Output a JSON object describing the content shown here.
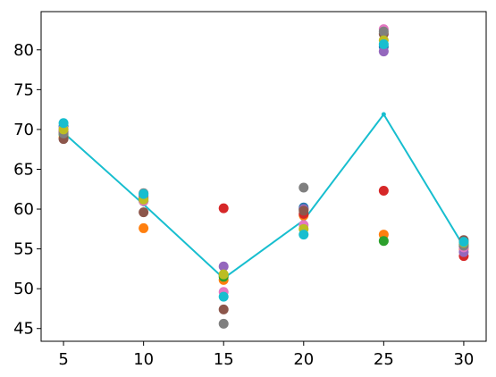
{
  "chart_data": {
    "type": "scatter",
    "title": "",
    "xlabel": "",
    "ylabel": "",
    "xlim": [
      3.6,
      31.4
    ],
    "ylim": [
      43.4,
      84.8
    ],
    "grid": false,
    "legend": "none",
    "x_ticks": [
      5,
      10,
      15,
      20,
      25,
      30
    ],
    "y_ticks": [
      45,
      50,
      55,
      60,
      65,
      70,
      75,
      80
    ],
    "x": [
      5,
      10,
      15,
      20,
      25,
      30
    ],
    "mean_line": {
      "color": "#17becf",
      "values": [
        69.6,
        60.6,
        51.3,
        58.6,
        71.9,
        55.3
      ]
    },
    "series": [
      {
        "color": "#1f77b4",
        "values": [
          70.4,
          61.3,
          51.7,
          60.2,
          80.4,
          55.6
        ]
      },
      {
        "color": "#ff7f0e",
        "values": [
          69.0,
          57.6,
          51.1,
          59.2,
          56.8,
          55.0
        ]
      },
      {
        "color": "#2ca02c",
        "values": [
          69.4,
          61.0,
          51.5,
          60.0,
          56.0,
          55.3
        ]
      },
      {
        "color": "#d62728",
        "values": [
          69.7,
          61.5,
          60.1,
          59.4,
          62.3,
          54.1
        ]
      },
      {
        "color": "#9467bd",
        "values": [
          69.9,
          61.7,
          52.8,
          60.0,
          79.8,
          54.6
        ]
      },
      {
        "color": "#8c564b",
        "values": [
          68.8,
          59.6,
          47.4,
          59.8,
          82.0,
          56.1
        ]
      },
      {
        "color": "#e377c2",
        "values": [
          70.1,
          61.0,
          49.6,
          58.0,
          82.6,
          55.2
        ]
      },
      {
        "color": "#7f7f7f",
        "values": [
          69.5,
          62.0,
          45.6,
          62.7,
          82.3,
          55.4
        ]
      },
      {
        "color": "#bcbd22",
        "values": [
          70.0,
          61.2,
          51.8,
          57.5,
          81.2,
          55.8
        ]
      },
      {
        "color": "#17becf",
        "values": [
          70.8,
          61.9,
          49.0,
          56.8,
          80.7,
          55.9
        ]
      }
    ]
  }
}
